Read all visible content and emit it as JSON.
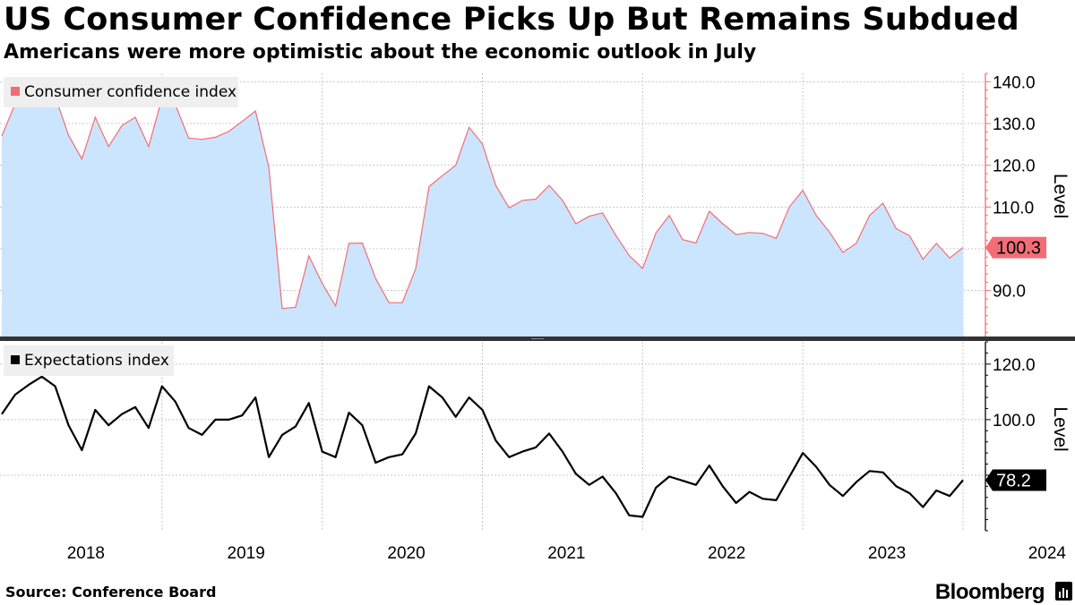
{
  "header": {
    "title": "US Consumer Confidence Picks Up But Remains Subdued",
    "subtitle": "Americans were more optimistic about the economic outlook in July"
  },
  "footer": {
    "source": "Source: Conference Board",
    "brand": "Bloomberg"
  },
  "chart_data": [
    {
      "type": "area",
      "legend": "Consumer confidence index",
      "ylabel": "Level",
      "ylim": [
        79,
        142
      ],
      "yticks": [
        "140.0",
        "130.0",
        "120.0",
        "110.0",
        "100.0",
        "90.0"
      ],
      "ytick_values": [
        140,
        130,
        120,
        110,
        100,
        90
      ],
      "last_value_label": "100.3",
      "line_color": "#f26d76",
      "fill_color": "#cce5ff",
      "x_start": "2018-01",
      "values": [
        127.0,
        134.7,
        135.5,
        138.0,
        136.5,
        127.2,
        121.5,
        131.5,
        124.5,
        129.5,
        131.5,
        124.5,
        136.0,
        134.5,
        126.5,
        126.2,
        126.7,
        128.1,
        130.5,
        133.0,
        119.5,
        85.7,
        86.0,
        98.3,
        91.7,
        86.3,
        101.3,
        101.4,
        92.9,
        87.1,
        87.1,
        95.2,
        114.9,
        117.5,
        120.0,
        129.1,
        125.1,
        115.2,
        109.8,
        111.6,
        111.9,
        115.2,
        111.6,
        106.0,
        107.8,
        108.6,
        103.2,
        98.4,
        95.3,
        103.8,
        108.0,
        102.2,
        101.4,
        109.0,
        106.0,
        103.4,
        103.9,
        103.7,
        102.5,
        110.1,
        114.0,
        108.0,
        104.0,
        99.1,
        101.3,
        108.0,
        110.9,
        104.8,
        103.1,
        97.5,
        101.3,
        97.8,
        100.3
      ]
    },
    {
      "type": "line",
      "legend": "Expectations index",
      "ylabel": "Level",
      "ylim": [
        60,
        128
      ],
      "yticks": [
        "120.0",
        "100.0"
      ],
      "ytick_values": [
        120,
        100
      ],
      "hidden_tick_value": 80,
      "last_value_label": "78.2",
      "line_color": "#000000",
      "x_start": "2018-01",
      "values": [
        102.0,
        109.0,
        112.5,
        115.5,
        112.0,
        98.0,
        89.0,
        103.5,
        98.0,
        102.0,
        104.5,
        97.0,
        112.0,
        106.5,
        97.0,
        94.5,
        100.0,
        100.0,
        101.5,
        108.0,
        86.5,
        94.5,
        97.5,
        106.0,
        88.5,
        86.5,
        102.5,
        98.0,
        84.5,
        86.5,
        87.5,
        95.0,
        112.0,
        108.0,
        101.0,
        108.0,
        103.5,
        92.5,
        86.5,
        88.5,
        90.0,
        95.0,
        88.5,
        80.5,
        76.5,
        79.5,
        73.5,
        65.5,
        65.0,
        75.5,
        79.5,
        78.0,
        76.5,
        83.5,
        76.0,
        70.0,
        74.0,
        71.5,
        71.0,
        79.5,
        88.0,
        83.0,
        76.5,
        72.5,
        77.5,
        81.5,
        81.0,
        76.0,
        73.5,
        68.5,
        74.5,
        72.5,
        78.2
      ]
    }
  ],
  "x_axis": {
    "labels": [
      "2018",
      "2019",
      "2020",
      "2021",
      "2022",
      "2023",
      "2024"
    ],
    "label_months": [
      6.5,
      18.5,
      30.5,
      42.5,
      54.5,
      66.5,
      78.5
    ]
  },
  "theme": {
    "panel_bg": "#ffffff",
    "grid_color": "#c8c8c8",
    "legend_bg": "#efefef",
    "axis_color": "#000000"
  }
}
